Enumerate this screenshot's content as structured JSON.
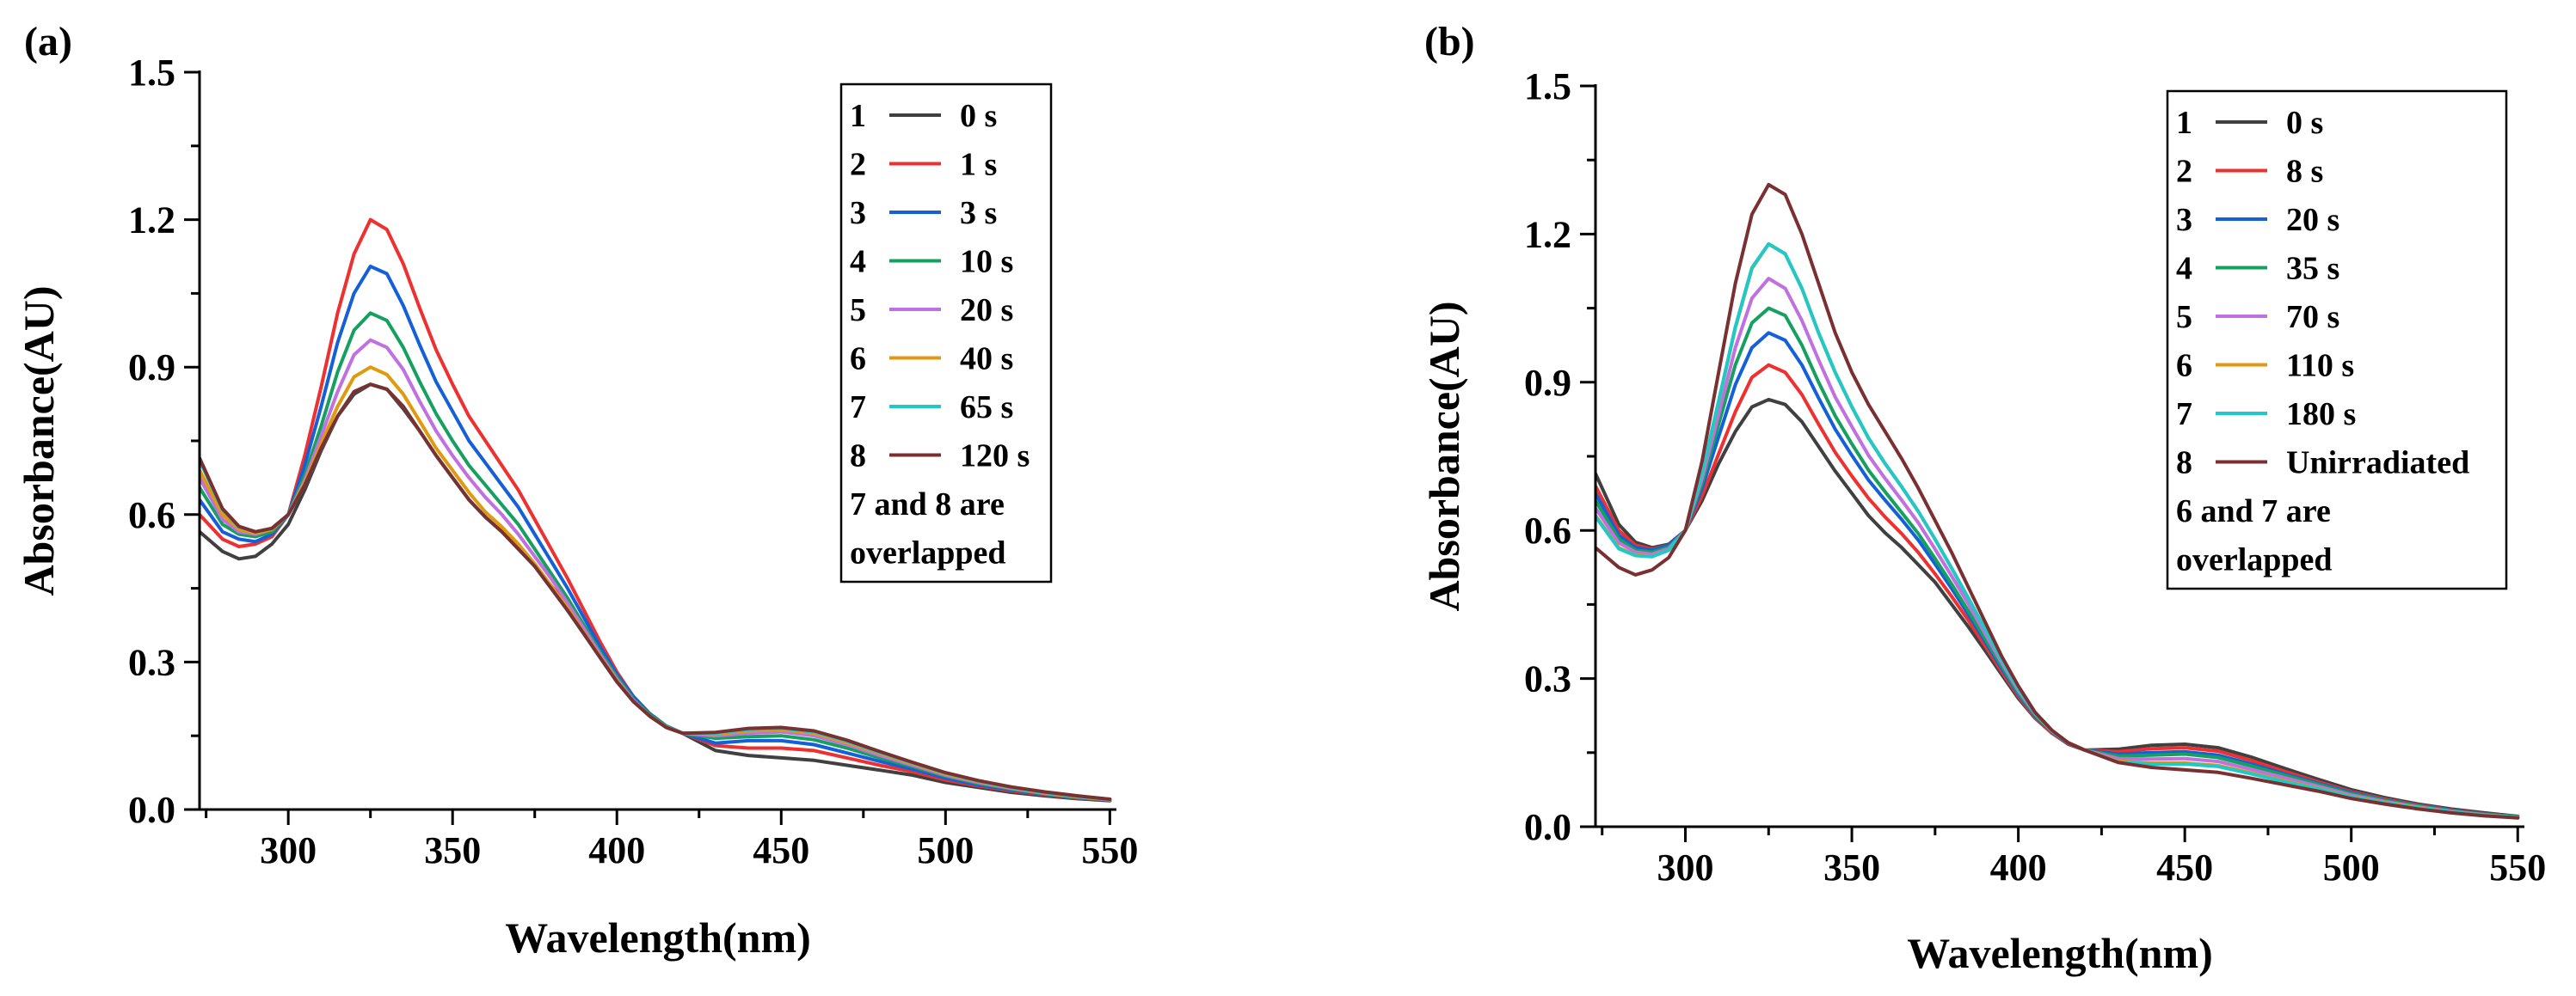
{
  "chart_data": [
    {
      "type": "line",
      "panel_label": "(a)",
      "xlabel": "Wavelength(nm)",
      "ylabel": "Absorbance(AU)",
      "xlim": [
        273,
        552
      ],
      "ylim": [
        0,
        1.5
      ],
      "xticks": [
        300,
        350,
        400,
        450,
        500,
        550
      ],
      "yticks": [
        0.0,
        0.3,
        0.6,
        0.9,
        1.2,
        1.5
      ],
      "xtick_labels": [
        "300",
        "350",
        "400",
        "450",
        "500",
        "550"
      ],
      "ytick_labels": [
        "0.0",
        "0.3",
        "0.6",
        "0.9",
        "1.2",
        "1.5"
      ],
      "grid": false,
      "legend_position": "top-right",
      "legend_note": [
        "7 and 8 are",
        "overlapped"
      ],
      "x": [
        273,
        280,
        285,
        290,
        295,
        300,
        305,
        310,
        315,
        320,
        325,
        330,
        335,
        340,
        345,
        350,
        355,
        360,
        365,
        370,
        375,
        380,
        385,
        390,
        395,
        400,
        405,
        410,
        415,
        420,
        430,
        440,
        450,
        460,
        470,
        480,
        490,
        500,
        510,
        520,
        530,
        540,
        550
      ],
      "series": [
        {
          "name": "0 s",
          "index": "1",
          "color": "#404040",
          "values": [
            0.565,
            0.525,
            0.51,
            0.515,
            0.54,
            0.58,
            0.65,
            0.73,
            0.8,
            0.845,
            0.865,
            0.855,
            0.815,
            0.77,
            0.72,
            0.675,
            0.63,
            0.595,
            0.565,
            0.53,
            0.495,
            0.455,
            0.415,
            0.37,
            0.325,
            0.275,
            0.23,
            0.195,
            0.17,
            0.155,
            0.12,
            0.11,
            0.105,
            0.1,
            0.09,
            0.08,
            0.07,
            0.055,
            0.045,
            0.035,
            0.028,
            0.022,
            0.018
          ]
        },
        {
          "name": "1 s",
          "index": "2",
          "color": "#ee3030",
          "values": [
            0.6,
            0.55,
            0.535,
            0.54,
            0.555,
            0.6,
            0.72,
            0.86,
            1.01,
            1.13,
            1.2,
            1.18,
            1.11,
            1.02,
            0.935,
            0.865,
            0.8,
            0.75,
            0.7,
            0.65,
            0.59,
            0.53,
            0.47,
            0.405,
            0.34,
            0.28,
            0.23,
            0.195,
            0.17,
            0.155,
            0.13,
            0.125,
            0.125,
            0.12,
            0.105,
            0.09,
            0.077,
            0.06,
            0.048,
            0.038,
            0.03,
            0.023,
            0.019
          ]
        },
        {
          "name": "3 s",
          "index": "3",
          "color": "#1560d8",
          "values": [
            0.63,
            0.565,
            0.55,
            0.545,
            0.56,
            0.6,
            0.7,
            0.82,
            0.95,
            1.05,
            1.105,
            1.09,
            1.025,
            0.945,
            0.87,
            0.81,
            0.75,
            0.705,
            0.66,
            0.615,
            0.56,
            0.505,
            0.45,
            0.39,
            0.33,
            0.275,
            0.23,
            0.195,
            0.17,
            0.155,
            0.135,
            0.14,
            0.14,
            0.132,
            0.115,
            0.098,
            0.082,
            0.064,
            0.05,
            0.04,
            0.031,
            0.024,
            0.019
          ]
        },
        {
          "name": "10 s",
          "index": "4",
          "color": "#15a060",
          "values": [
            0.655,
            0.58,
            0.56,
            0.555,
            0.565,
            0.6,
            0.68,
            0.78,
            0.89,
            0.975,
            1.01,
            0.995,
            0.94,
            0.87,
            0.805,
            0.75,
            0.7,
            0.66,
            0.62,
            0.58,
            0.53,
            0.48,
            0.43,
            0.375,
            0.32,
            0.27,
            0.225,
            0.193,
            0.17,
            0.155,
            0.145,
            0.148,
            0.15,
            0.142,
            0.125,
            0.105,
            0.087,
            0.068,
            0.053,
            0.042,
            0.032,
            0.025,
            0.02
          ]
        },
        {
          "name": "20 s",
          "index": "5",
          "color": "#c070e0",
          "values": [
            0.675,
            0.59,
            0.565,
            0.56,
            0.57,
            0.6,
            0.67,
            0.76,
            0.85,
            0.925,
            0.955,
            0.94,
            0.895,
            0.83,
            0.77,
            0.72,
            0.675,
            0.635,
            0.6,
            0.56,
            0.515,
            0.47,
            0.42,
            0.368,
            0.315,
            0.265,
            0.222,
            0.19,
            0.168,
            0.155,
            0.15,
            0.155,
            0.158,
            0.15,
            0.132,
            0.11,
            0.09,
            0.07,
            0.055,
            0.043,
            0.033,
            0.026,
            0.02
          ]
        },
        {
          "name": "40 s",
          "index": "6",
          "color": "#e09a10",
          "values": [
            0.69,
            0.6,
            0.57,
            0.562,
            0.57,
            0.6,
            0.665,
            0.745,
            0.82,
            0.88,
            0.9,
            0.885,
            0.845,
            0.79,
            0.735,
            0.69,
            0.645,
            0.605,
            0.575,
            0.54,
            0.5,
            0.455,
            0.41,
            0.36,
            0.31,
            0.262,
            0.22,
            0.19,
            0.167,
            0.155,
            0.153,
            0.16,
            0.162,
            0.155,
            0.136,
            0.114,
            0.093,
            0.072,
            0.057,
            0.044,
            0.034,
            0.026,
            0.02
          ]
        },
        {
          "name": "65 s",
          "index": "7",
          "color": "#20c8c8",
          "values": [
            0.71,
            0.61,
            0.575,
            0.565,
            0.572,
            0.6,
            0.66,
            0.735,
            0.8,
            0.85,
            0.865,
            0.855,
            0.82,
            0.77,
            0.72,
            0.675,
            0.63,
            0.595,
            0.565,
            0.53,
            0.495,
            0.45,
            0.405,
            0.357,
            0.308,
            0.26,
            0.22,
            0.19,
            0.167,
            0.155,
            0.155,
            0.163,
            0.165,
            0.158,
            0.139,
            0.116,
            0.095,
            0.074,
            0.058,
            0.045,
            0.035,
            0.027,
            0.021
          ]
        },
        {
          "name": "120 s",
          "index": "8",
          "color": "#7a3030",
          "values": [
            0.715,
            0.612,
            0.576,
            0.565,
            0.572,
            0.6,
            0.66,
            0.735,
            0.8,
            0.85,
            0.865,
            0.855,
            0.82,
            0.77,
            0.72,
            0.675,
            0.63,
            0.595,
            0.565,
            0.53,
            0.495,
            0.45,
            0.405,
            0.357,
            0.308,
            0.26,
            0.22,
            0.19,
            0.167,
            0.155,
            0.157,
            0.165,
            0.167,
            0.16,
            0.141,
            0.118,
            0.096,
            0.075,
            0.059,
            0.046,
            0.036,
            0.028,
            0.021
          ]
        }
      ]
    },
    {
      "type": "line",
      "panel_label": "(b)",
      "xlabel": "Wavelength(nm)",
      "ylabel": "Absorbance(AU)",
      "xlim": [
        273,
        552
      ],
      "ylim": [
        0,
        1.5
      ],
      "xticks": [
        300,
        350,
        400,
        450,
        500,
        550
      ],
      "yticks": [
        0.0,
        0.3,
        0.6,
        0.9,
        1.2,
        1.5
      ],
      "xtick_labels": [
        "300",
        "350",
        "400",
        "450",
        "500",
        "550"
      ],
      "ytick_labels": [
        "0.0",
        "0.3",
        "0.6",
        "0.9",
        "1.2",
        "1.5"
      ],
      "grid": false,
      "legend_position": "top-right",
      "legend_note": [
        "6 and 7 are",
        "overlapped"
      ],
      "x": [
        273,
        280,
        285,
        290,
        295,
        300,
        305,
        310,
        315,
        320,
        325,
        330,
        335,
        340,
        345,
        350,
        355,
        360,
        365,
        370,
        375,
        380,
        385,
        390,
        395,
        400,
        405,
        410,
        415,
        420,
        430,
        440,
        450,
        460,
        470,
        480,
        490,
        500,
        510,
        520,
        530,
        540,
        550
      ],
      "series": [
        {
          "name": "0 s",
          "index": "1",
          "color": "#404040",
          "values": [
            0.715,
            0.612,
            0.576,
            0.565,
            0.572,
            0.6,
            0.66,
            0.735,
            0.8,
            0.85,
            0.865,
            0.855,
            0.82,
            0.77,
            0.72,
            0.675,
            0.63,
            0.595,
            0.565,
            0.53,
            0.495,
            0.45,
            0.405,
            0.357,
            0.308,
            0.26,
            0.22,
            0.19,
            0.167,
            0.155,
            0.157,
            0.165,
            0.167,
            0.16,
            0.141,
            0.118,
            0.096,
            0.075,
            0.059,
            0.046,
            0.036,
            0.028,
            0.021
          ]
        },
        {
          "name": "8 s",
          "index": "2",
          "color": "#ee3030",
          "values": [
            0.69,
            0.6,
            0.57,
            0.562,
            0.57,
            0.6,
            0.67,
            0.755,
            0.84,
            0.91,
            0.935,
            0.92,
            0.875,
            0.815,
            0.758,
            0.71,
            0.665,
            0.627,
            0.593,
            0.555,
            0.512,
            0.466,
            0.418,
            0.366,
            0.314,
            0.264,
            0.221,
            0.19,
            0.168,
            0.155,
            0.152,
            0.158,
            0.16,
            0.153,
            0.134,
            0.112,
            0.091,
            0.071,
            0.056,
            0.044,
            0.034,
            0.026,
            0.02
          ]
        },
        {
          "name": "20 s",
          "index": "3",
          "color": "#1560d8",
          "values": [
            0.675,
            0.59,
            0.565,
            0.56,
            0.57,
            0.6,
            0.685,
            0.79,
            0.895,
            0.97,
            1.0,
            0.985,
            0.935,
            0.868,
            0.805,
            0.752,
            0.702,
            0.661,
            0.622,
            0.58,
            0.532,
            0.482,
            0.43,
            0.375,
            0.32,
            0.268,
            0.224,
            0.192,
            0.169,
            0.155,
            0.147,
            0.15,
            0.152,
            0.145,
            0.127,
            0.107,
            0.088,
            0.069,
            0.054,
            0.043,
            0.033,
            0.025,
            0.02
          ]
        },
        {
          "name": "35 s",
          "index": "4",
          "color": "#15a060",
          "values": [
            0.66,
            0.583,
            0.56,
            0.556,
            0.566,
            0.6,
            0.695,
            0.815,
            0.935,
            1.02,
            1.05,
            1.035,
            0.975,
            0.9,
            0.832,
            0.775,
            0.722,
            0.678,
            0.636,
            0.593,
            0.543,
            0.491,
            0.437,
            0.381,
            0.325,
            0.271,
            0.226,
            0.193,
            0.17,
            0.155,
            0.143,
            0.145,
            0.147,
            0.14,
            0.123,
            0.104,
            0.086,
            0.067,
            0.053,
            0.042,
            0.032,
            0.025,
            0.02
          ]
        },
        {
          "name": "70 s",
          "index": "5",
          "color": "#c070e0",
          "values": [
            0.645,
            0.575,
            0.556,
            0.552,
            0.563,
            0.6,
            0.705,
            0.835,
            0.97,
            1.07,
            1.11,
            1.09,
            1.025,
            0.945,
            0.87,
            0.81,
            0.752,
            0.705,
            0.661,
            0.615,
            0.562,
            0.507,
            0.451,
            0.391,
            0.332,
            0.276,
            0.229,
            0.194,
            0.17,
            0.155,
            0.138,
            0.137,
            0.138,
            0.132,
            0.116,
            0.099,
            0.082,
            0.064,
            0.051,
            0.04,
            0.031,
            0.024,
            0.019
          ]
        },
        {
          "name": "110 s",
          "index": "6",
          "color": "#e09a10",
          "values": [
            0.63,
            0.565,
            0.55,
            0.548,
            0.56,
            0.6,
            0.715,
            0.86,
            1.01,
            1.13,
            1.18,
            1.16,
            1.09,
            1.0,
            0.92,
            0.85,
            0.787,
            0.735,
            0.688,
            0.638,
            0.582,
            0.523,
            0.463,
            0.4,
            0.338,
            0.28,
            0.231,
            0.195,
            0.17,
            0.155,
            0.133,
            0.129,
            0.129,
            0.124,
            0.109,
            0.093,
            0.078,
            0.061,
            0.049,
            0.039,
            0.03,
            0.023,
            0.019
          ]
        },
        {
          "name": "180 s",
          "index": "7",
          "color": "#20c8c8",
          "values": [
            0.628,
            0.563,
            0.549,
            0.547,
            0.56,
            0.6,
            0.716,
            0.862,
            1.012,
            1.132,
            1.18,
            1.16,
            1.09,
            1.0,
            0.92,
            0.85,
            0.787,
            0.735,
            0.688,
            0.638,
            0.582,
            0.523,
            0.463,
            0.4,
            0.338,
            0.28,
            0.231,
            0.195,
            0.17,
            0.155,
            0.131,
            0.127,
            0.127,
            0.122,
            0.107,
            0.091,
            0.077,
            0.06,
            0.048,
            0.038,
            0.03,
            0.023,
            0.019
          ]
        },
        {
          "name": "Unirradiated",
          "index": "8",
          "color": "#7a3030",
          "values": [
            0.565,
            0.525,
            0.51,
            0.52,
            0.545,
            0.6,
            0.74,
            0.92,
            1.1,
            1.24,
            1.3,
            1.28,
            1.2,
            1.1,
            1.0,
            0.92,
            0.855,
            0.8,
            0.745,
            0.685,
            0.62,
            0.555,
            0.485,
            0.415,
            0.345,
            0.285,
            0.232,
            0.196,
            0.17,
            0.155,
            0.13,
            0.12,
            0.115,
            0.11,
            0.098,
            0.085,
            0.072,
            0.057,
            0.046,
            0.036,
            0.028,
            0.022,
            0.018
          ]
        }
      ]
    }
  ]
}
